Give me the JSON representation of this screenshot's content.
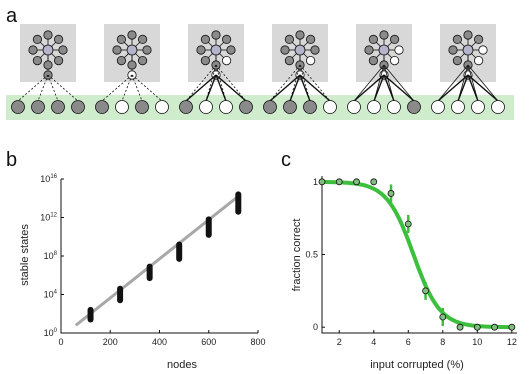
{
  "panels": {
    "a": {
      "label": "a",
      "networks": 6
    },
    "b": {
      "label": "b"
    },
    "c": {
      "label": "c"
    }
  },
  "colors": {
    "node_fill": "#8a8a8a",
    "node_open": "#ffffff",
    "box_gray": "#d8d8d8",
    "band_green": "#cfeccd",
    "fit_gray": "#a8a8a8",
    "curve_green": "#3cbf3c",
    "marker_green": "#7fbf7f",
    "black": "#111111"
  },
  "chart_data": [
    {
      "type": "scatter",
      "title": "",
      "xlabel": "nodes",
      "ylabel": "stable states",
      "xlim": [
        0,
        800
      ],
      "ylim_exp": [
        0,
        16
      ],
      "log_y": true,
      "xticks": [
        "0",
        "200",
        "400",
        "600",
        "800"
      ],
      "yticks": [
        {
          "base": "10",
          "exp": "0",
          "value": 0
        },
        {
          "base": "10",
          "exp": "4",
          "value": 4
        },
        {
          "base": "10",
          "exp": "8",
          "value": 8
        },
        {
          "base": "10",
          "exp": "12",
          "value": 12
        },
        {
          "base": "10",
          "exp": "16",
          "value": 16
        }
      ],
      "series": [
        {
          "x": [
            120,
            240,
            360,
            480,
            600,
            720
          ],
          "log10_y_min": [
            1.4,
            3.4,
            5.7,
            7.7,
            10.2,
            12.6
          ],
          "log10_y_max": [
            2.4,
            4.6,
            6.9,
            9.2,
            11.8,
            14.4
          ]
        }
      ],
      "fit_line": {
        "x": [
          60,
          720
        ],
        "log10_y": [
          0.8,
          14.2
        ]
      }
    },
    {
      "type": "line",
      "title": "",
      "xlabel": "input corrupted (%)",
      "ylabel": "fraction correct",
      "xlim": [
        1,
        12.3
      ],
      "ylim": [
        -0.04,
        1.04
      ],
      "xticks": [
        "2",
        "4",
        "6",
        "8",
        "10",
        "12"
      ],
      "yticks": [
        "0",
        "0.5",
        "1"
      ],
      "series": [
        {
          "x": [
            1,
            2,
            3,
            4,
            5,
            6,
            7,
            8,
            9,
            10,
            11,
            12
          ],
          "y": [
            1.0,
            1.0,
            1.0,
            1.0,
            0.92,
            0.71,
            0.25,
            0.07,
            0.0,
            0.0,
            0.0,
            0.0
          ]
        }
      ],
      "fit_curve": {
        "center": 6.3,
        "slope": 1.3
      }
    }
  ]
}
